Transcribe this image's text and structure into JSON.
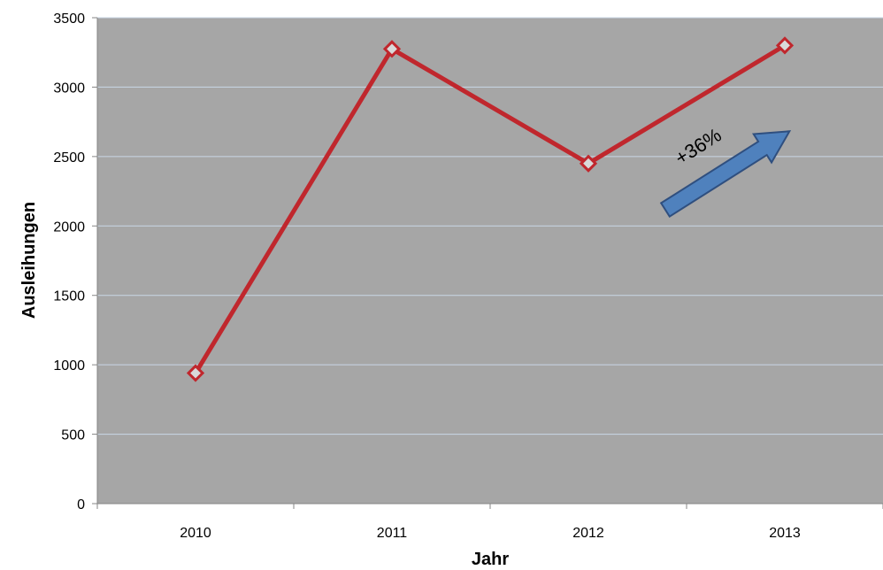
{
  "chart_data": {
    "type": "line",
    "title": "",
    "xlabel": "Jahr",
    "ylabel": "Ausleihungen",
    "categories": [
      "2010",
      "2011",
      "2012",
      "2013"
    ],
    "series": [
      {
        "values": [
          940,
          3275,
          2450,
          3300
        ]
      }
    ],
    "ylim": [
      0,
      3500
    ],
    "yticks": [
      "0",
      "500",
      "1000",
      "1500",
      "2000",
      "2500",
      "3000",
      "3500"
    ],
    "grid": true,
    "legend": "none",
    "annotation": {
      "text": "+36%"
    },
    "colors": {
      "plot_background": "#a6a6a6",
      "gridline": "#c9d7e6",
      "line": "#c0272d",
      "marker_fill": "#d9d9d9",
      "arrow_fill": "#4f81bd",
      "arrow_stroke": "#2f4f7f"
    }
  }
}
